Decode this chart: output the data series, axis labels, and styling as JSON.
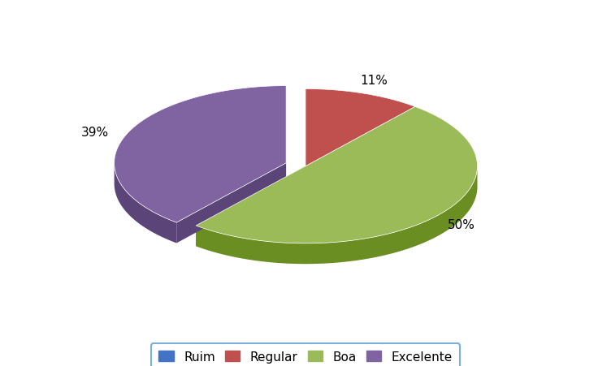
{
  "labels": [
    "Ruim",
    "Regular",
    "Boa",
    "Excelente"
  ],
  "values": [
    0,
    11,
    50,
    39
  ],
  "colors_top": [
    "#4472C4",
    "#C0504D",
    "#9BBB59",
    "#8064A2"
  ],
  "colors_side": [
    "#2F5496",
    "#943634",
    "#6B8E23",
    "#5A4478"
  ],
  "explode": [
    0,
    0,
    0,
    0.12
  ],
  "startangle": 90,
  "legend_labels": [
    "Ruim",
    "Regular",
    "Boa",
    "Excelente"
  ],
  "background_color": "#ffffff",
  "legend_edgecolor": "#5B9BD5",
  "pct_fontsize": 11,
  "legend_fontsize": 11,
  "depth": 0.12,
  "yscale": 0.45
}
